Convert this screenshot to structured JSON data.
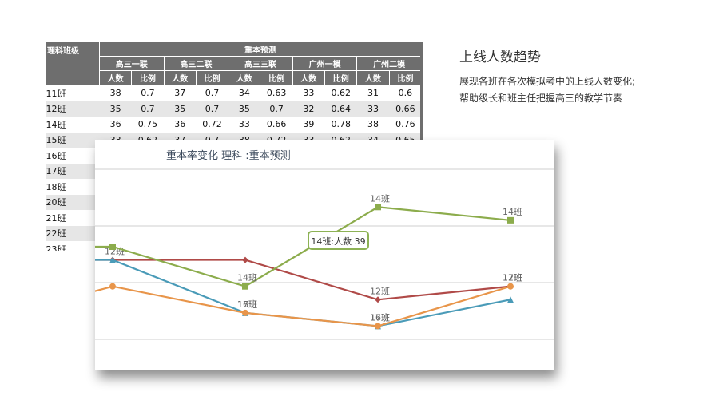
{
  "sheet": {
    "corner_label": "理科班级",
    "group_label": "重本预测",
    "exams": [
      "高三一联",
      "高三二联",
      "高三三联",
      "广州一模",
      "广州二模"
    ],
    "sub_headers": [
      "人数",
      "比例",
      "人数",
      "比例",
      "人数",
      "比例",
      "人数",
      "比例",
      "人数",
      "比例"
    ],
    "rows": [
      {
        "cls": "11班",
        "cells": [
          "38",
          "0.7",
          "37",
          "0.7",
          "34",
          "0.63",
          "33",
          "0.62",
          "31",
          "0.6"
        ]
      },
      {
        "cls": "12班",
        "cells": [
          "35",
          "0.7",
          "35",
          "0.7",
          "35",
          "0.7",
          "32",
          "0.64",
          "33",
          "0.66"
        ]
      },
      {
        "cls": "14班",
        "cells": [
          "36",
          "0.75",
          "36",
          "0.72",
          "33",
          "0.66",
          "39",
          "0.78",
          "38",
          "0.76"
        ]
      },
      {
        "cls": "15班",
        "cells": [
          "33",
          "0.62",
          "37",
          "0.7",
          "38",
          "0.72",
          "33",
          "0.62",
          "34",
          "0.65"
        ]
      },
      {
        "cls": "16班",
        "cells": [
          "",
          "",
          "",
          "",
          "",
          "",
          "",
          "",
          "",
          ""
        ]
      },
      {
        "cls": "17班",
        "cells": [
          "",
          "",
          "",
          "",
          "",
          "",
          "",
          "",
          "",
          ""
        ]
      },
      {
        "cls": "18班",
        "cells": [
          "",
          "",
          "",
          "",
          "",
          "",
          "",
          "",
          "",
          ""
        ]
      },
      {
        "cls": "20班",
        "cells": [
          "",
          "",
          "",
          "",
          "",
          "",
          "",
          "",
          "",
          ""
        ]
      },
      {
        "cls": "21班",
        "cells": [
          "",
          "",
          "",
          "",
          "",
          "",
          "",
          "",
          "",
          ""
        ]
      },
      {
        "cls": "22班",
        "cells": [
          "",
          "",
          "",
          "",
          "",
          "",
          "",
          "",
          "",
          ""
        ]
      },
      {
        "cls": "23班",
        "cells": [
          "",
          "",
          "",
          "",
          "",
          "",
          "",
          "",
          "",
          ""
        ]
      }
    ]
  },
  "panel": {
    "title": "上线人数趋势",
    "desc_line1": "展现各班在各次模拟考中的上线人数变化;",
    "desc_line2": "帮助级长和班主任把握高三的教学节奏"
  },
  "chart_data": {
    "type": "line",
    "title": "重本率变化 理科 :重本预测",
    "x": [
      "高三一联",
      "高三二联",
      "高三三联",
      "广州一模",
      "广州二模"
    ],
    "ylim": [
      29,
      43
    ],
    "grid": true,
    "series": [
      {
        "name": "12班",
        "color": "#b04a48",
        "marker": "diamond",
        "values": [
          35,
          35,
          35,
          32,
          33
        ],
        "labels": [
          "",
          "12班",
          "",
          "12班",
          "12班"
        ]
      },
      {
        "name": "14班",
        "color": "#8cac4c",
        "marker": "square",
        "values": [
          36,
          36,
          33,
          39,
          38
        ],
        "labels": [
          "14班",
          "",
          "14班",
          "14班",
          "14班"
        ]
      },
      {
        "name": "16班",
        "color": "#4a9bb8",
        "marker": "triangle",
        "values": [
          35,
          35,
          31,
          30,
          32
        ],
        "labels": [
          "16班",
          "",
          "16班",
          "16班",
          ""
        ]
      },
      {
        "name": "17班",
        "color": "#e8954a",
        "marker": "circle",
        "values": [
          32,
          33,
          31,
          30,
          33
        ],
        "labels": [
          "17班",
          "",
          "17班",
          "17班",
          "17班"
        ]
      }
    ],
    "tooltip": "14班:人数 39"
  }
}
